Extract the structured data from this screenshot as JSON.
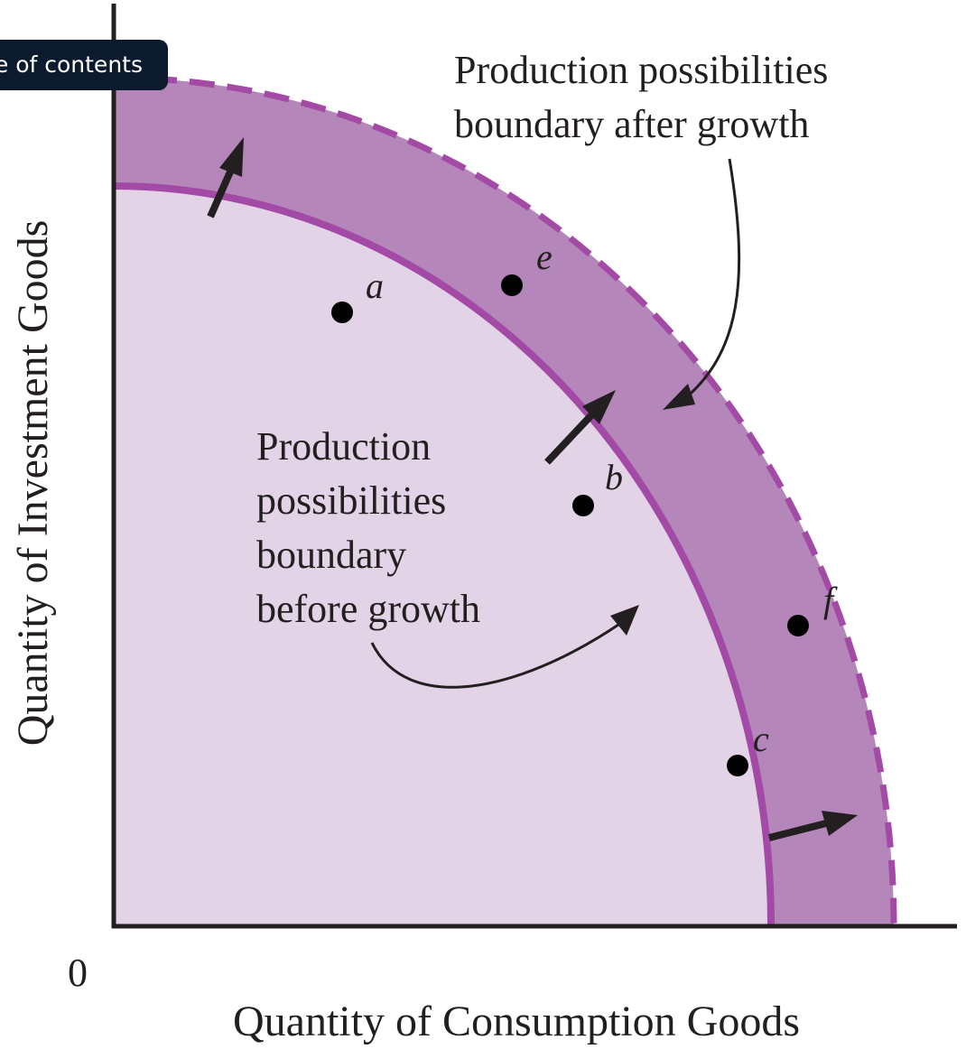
{
  "toc_button": {
    "label": "e of contents"
  },
  "diagram": {
    "y_axis_label": "Quantity of Investment Goods",
    "x_axis_label": "Quantity of Consumption Goods",
    "origin_label": "0",
    "after_growth_label": [
      "Production possibilities",
      "boundary after growth"
    ],
    "before_growth_label": [
      "Production",
      "possibilities",
      "boundary",
      "before growth"
    ],
    "points": [
      {
        "id": "a",
        "label": "a"
      },
      {
        "id": "b",
        "label": "b"
      },
      {
        "id": "c",
        "label": "c"
      },
      {
        "id": "e",
        "label": "e"
      },
      {
        "id": "f",
        "label": "f"
      }
    ],
    "colors": {
      "inner_region": "#e2d3e6",
      "outer_band": "#b486b9",
      "boundary_line": "#a24aa6",
      "axis": "#231f20",
      "point": "#000000"
    }
  }
}
